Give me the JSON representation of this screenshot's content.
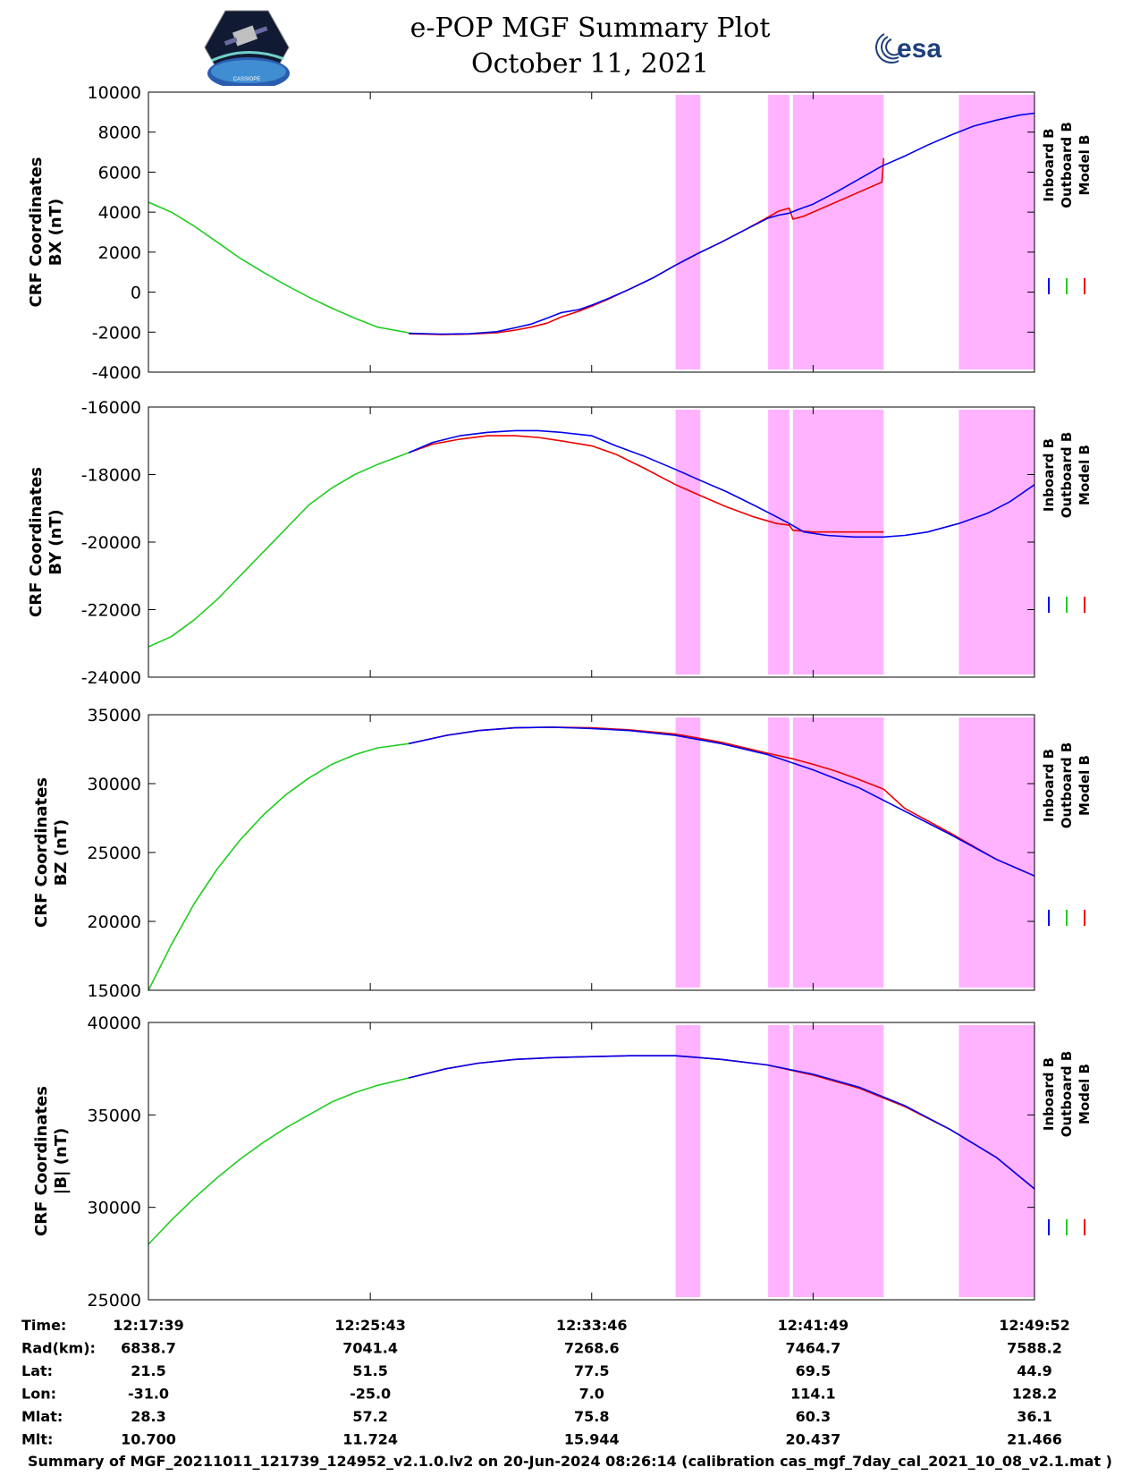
{
  "header": {
    "title": "e-POP MGF Summary Plot",
    "date": "October 11, 2021",
    "logo_left": "CASSIOPE",
    "logo_right": "esa"
  },
  "colors": {
    "inboard": "#0000ee",
    "outboard": "#22cc22",
    "model": "#ee0000",
    "shade": "#ffb3ff"
  },
  "legend": [
    "Inboard B",
    "Outboard B",
    "Model B"
  ],
  "time_axis": {
    "ticks": [
      "12:17:39",
      "12:25:43",
      "12:33:46",
      "12:41:49",
      "12:49:52"
    ],
    "tick_seconds": [
      0,
      484,
      967,
      1450,
      1933
    ],
    "range_seconds": [
      0,
      1933
    ]
  },
  "shaded_intervals_seconds": [
    [
      1150,
      1204
    ],
    [
      1352,
      1398
    ],
    [
      1406,
      1604
    ],
    [
      1768,
      1933
    ]
  ],
  "ephemeris": {
    "rows": [
      {
        "label": "Time:",
        "values": [
          "12:17:39",
          "12:25:43",
          "12:33:46",
          "12:41:49",
          "12:49:52"
        ]
      },
      {
        "label": "Rad(km):",
        "values": [
          "6838.7",
          "7041.4",
          "7268.6",
          "7464.7",
          "7588.2"
        ]
      },
      {
        "label": "Lat:",
        "values": [
          "21.5",
          "51.5",
          "77.5",
          "69.5",
          "44.9"
        ]
      },
      {
        "label": "Lon:",
        "values": [
          "-31.0",
          "-25.0",
          "7.0",
          "114.1",
          "128.2"
        ]
      },
      {
        "label": "Mlat:",
        "values": [
          "28.3",
          "57.2",
          "75.8",
          "60.3",
          "36.1"
        ]
      },
      {
        "label": "Mlt:",
        "values": [
          "10.700",
          "11.724",
          "15.944",
          "20.437",
          "21.466"
        ]
      }
    ]
  },
  "footer": "Summary of MGF_20211011_121739_124952_v2.1.0.lv2 on 20-Jun-2024 08:26:14 (calibration cas_mgf_7day_cal_2021_10_08_v2.1.mat )",
  "chart_data": [
    {
      "type": "line",
      "ylabel": [
        "CRF Coordinates",
        "BX (nT)"
      ],
      "ylim": [
        -4000,
        10000
      ],
      "yticks": [
        -4000,
        -2000,
        0,
        2000,
        4000,
        6000,
        8000,
        10000
      ],
      "series": [
        {
          "name": "Inboard B",
          "x": [
            568,
            640,
            700,
            760,
            800,
            835,
            870,
            900,
            940,
            967,
            1000,
            1050,
            1100,
            1150,
            1200,
            1250,
            1300,
            1352,
            1375,
            1398,
            1420,
            1450,
            1500,
            1550,
            1600,
            1650,
            1700,
            1750,
            1800,
            1850,
            1900,
            1933
          ],
          "y": [
            -2060,
            -2100,
            -2080,
            -1980,
            -1780,
            -1600,
            -1300,
            -1030,
            -870,
            -650,
            -350,
            150,
            700,
            1350,
            1950,
            2500,
            3100,
            3700,
            3850,
            3950,
            4150,
            4400,
            5000,
            5650,
            6300,
            6800,
            7350,
            7850,
            8300,
            8600,
            8850,
            8950
          ]
        },
        {
          "name": "Outboard B",
          "x": [
            0,
            50,
            100,
            150,
            200,
            250,
            300,
            350,
            400,
            450,
            500,
            568
          ],
          "y": [
            4500,
            4000,
            3300,
            2500,
            1700,
            1000,
            350,
            -250,
            -800,
            -1300,
            -1750,
            -2030
          ]
        },
        {
          "name": "Model B",
          "x": [
            568,
            640,
            700,
            760,
            800,
            835,
            870,
            900,
            940,
            967,
            1000,
            1050,
            1100,
            1150,
            1200,
            1250,
            1300,
            1352,
            1375,
            1398,
            1406,
            1430,
            1450,
            1500,
            1550,
            1600,
            1604
          ],
          "y": [
            -2080,
            -2120,
            -2100,
            -2030,
            -1900,
            -1750,
            -1550,
            -1250,
            -950,
            -700,
            -380,
            150,
            700,
            1350,
            1950,
            2500,
            3100,
            3750,
            4050,
            4200,
            3650,
            3800,
            4000,
            4500,
            5000,
            5500,
            6700
          ]
        }
      ]
    },
    {
      "type": "line",
      "ylabel": [
        "CRF Coordinates",
        "BY (nT)"
      ],
      "ylim": [
        -24000,
        -16000
      ],
      "yticks": [
        -24000,
        -22000,
        -20000,
        -18000,
        -16000
      ],
      "series": [
        {
          "name": "Inboard B",
          "x": [
            568,
            620,
            680,
            740,
            800,
            850,
            900,
            967,
            1020,
            1080,
            1150,
            1200,
            1260,
            1320,
            1370,
            1398,
            1430,
            1480,
            1540,
            1604,
            1650,
            1700,
            1768,
            1830,
            1880,
            1933
          ],
          "y": [
            -17350,
            -17050,
            -16850,
            -16750,
            -16700,
            -16700,
            -16750,
            -16850,
            -17150,
            -17450,
            -17850,
            -18150,
            -18500,
            -18900,
            -19250,
            -19450,
            -19700,
            -19800,
            -19850,
            -19850,
            -19800,
            -19700,
            -19450,
            -19150,
            -18800,
            -18300
          ]
        },
        {
          "name": "Outboard B",
          "x": [
            0,
            50,
            100,
            150,
            200,
            250,
            300,
            350,
            400,
            450,
            500,
            568
          ],
          "y": [
            -23100,
            -22800,
            -22300,
            -21700,
            -21000,
            -20300,
            -19600,
            -18900,
            -18400,
            -18000,
            -17700,
            -17350
          ]
        },
        {
          "name": "Model B",
          "x": [
            568,
            620,
            680,
            740,
            800,
            850,
            900,
            967,
            1020,
            1080,
            1150,
            1200,
            1260,
            1320,
            1370,
            1398,
            1406,
            1450,
            1500,
            1550,
            1604
          ],
          "y": [
            -17350,
            -17100,
            -16950,
            -16850,
            -16850,
            -16900,
            -17000,
            -17150,
            -17400,
            -17800,
            -18300,
            -18600,
            -18950,
            -19250,
            -19450,
            -19500,
            -19650,
            -19700,
            -19700,
            -19700,
            -19700
          ]
        }
      ]
    },
    {
      "type": "line",
      "ylabel": [
        "CRF Coordinates",
        "BZ (nT)"
      ],
      "ylim": [
        15000,
        35000
      ],
      "yticks": [
        15000,
        20000,
        25000,
        30000,
        35000
      ],
      "series": [
        {
          "name": "Inboard B",
          "x": [
            568,
            650,
            720,
            800,
            880,
            967,
            1050,
            1150,
            1250,
            1352,
            1450,
            1550,
            1650,
            1750,
            1850,
            1933
          ],
          "y": [
            32900,
            33500,
            33850,
            34050,
            34100,
            34000,
            33850,
            33500,
            32900,
            32100,
            31000,
            29700,
            28000,
            26300,
            24500,
            23300
          ]
        },
        {
          "name": "Outboard B",
          "x": [
            0,
            50,
            100,
            150,
            200,
            250,
            300,
            350,
            400,
            450,
            500,
            568
          ],
          "y": [
            15000,
            18300,
            21300,
            23800,
            25900,
            27700,
            29200,
            30400,
            31400,
            32100,
            32600,
            32900
          ]
        },
        {
          "name": "Model B",
          "x": [
            568,
            650,
            720,
            800,
            880,
            967,
            1050,
            1150,
            1250,
            1352,
            1406,
            1450,
            1500,
            1550,
            1604,
            1650,
            1750,
            1850,
            1933
          ],
          "y": [
            32900,
            33500,
            33850,
            34050,
            34100,
            34050,
            33900,
            33600,
            33000,
            32200,
            31800,
            31400,
            30900,
            30300,
            29600,
            28200,
            26400,
            24500,
            23300
          ]
        }
      ]
    },
    {
      "type": "line",
      "ylabel": [
        "CRF Coordinates",
        "|B| (nT)"
      ],
      "ylim": [
        25000,
        40000
      ],
      "yticks": [
        25000,
        30000,
        35000,
        40000
      ],
      "series": [
        {
          "name": "Inboard B",
          "x": [
            568,
            650,
            720,
            800,
            880,
            967,
            1050,
            1150,
            1250,
            1350,
            1450,
            1550,
            1650,
            1750,
            1850,
            1933
          ],
          "y": [
            37000,
            37500,
            37800,
            38000,
            38100,
            38150,
            38200,
            38200,
            38000,
            37700,
            37200,
            36500,
            35500,
            34200,
            32700,
            31000
          ]
        },
        {
          "name": "Outboard B",
          "x": [
            0,
            50,
            100,
            150,
            200,
            250,
            300,
            350,
            400,
            450,
            500,
            568
          ],
          "y": [
            28000,
            29300,
            30500,
            31600,
            32600,
            33500,
            34300,
            35000,
            35700,
            36200,
            36600,
            37000
          ]
        },
        {
          "name": "Model B",
          "x": [
            568,
            650,
            720,
            800,
            880,
            967,
            1050,
            1150,
            1250,
            1350,
            1450,
            1550,
            1650,
            1750,
            1850,
            1933
          ],
          "y": [
            37000,
            37500,
            37800,
            38000,
            38100,
            38150,
            38200,
            38200,
            38000,
            37700,
            37150,
            36450,
            35450,
            34200,
            32700,
            31000
          ]
        }
      ]
    }
  ]
}
